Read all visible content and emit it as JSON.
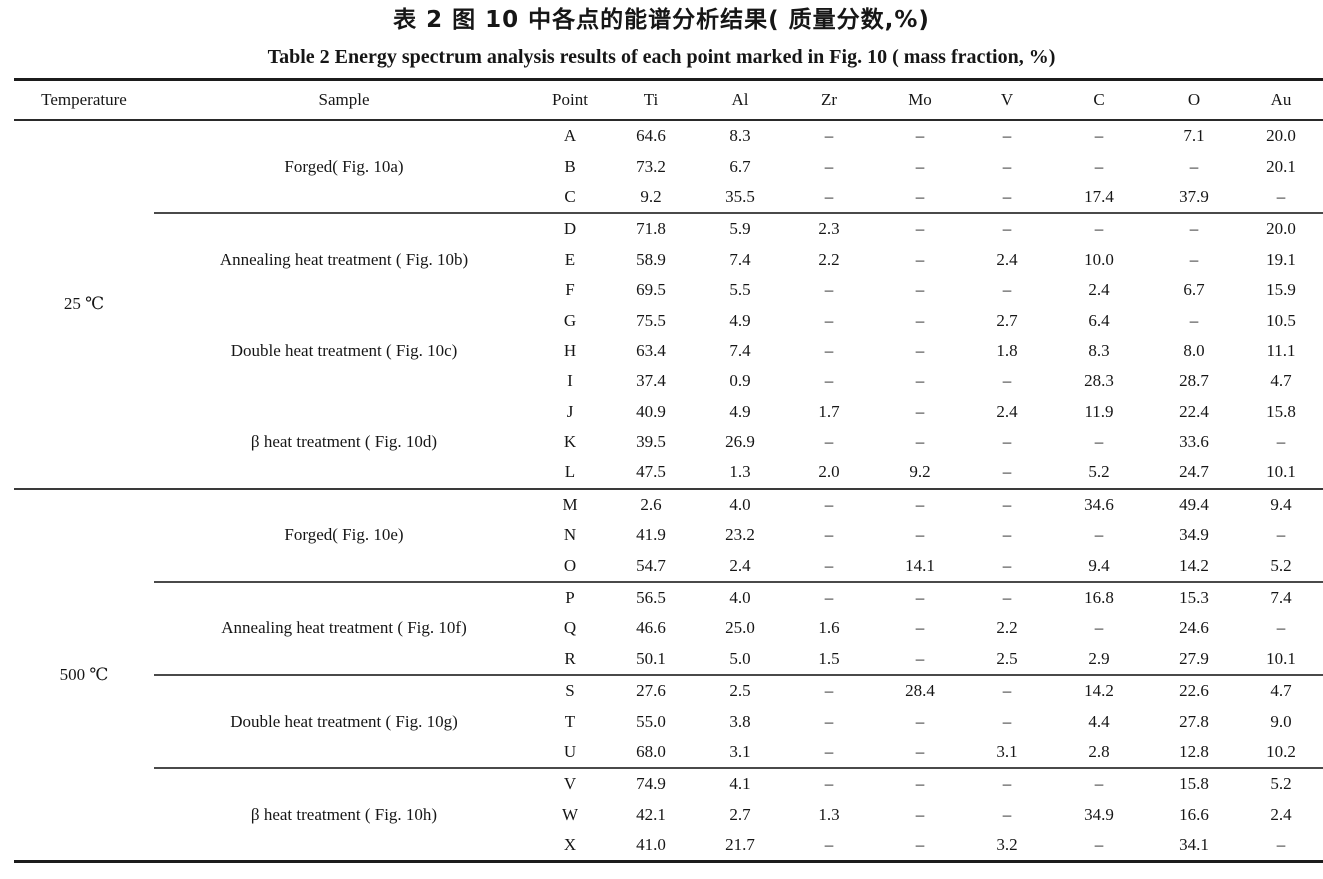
{
  "title_zh": "表 2  图 10 中各点的能谱分析结果( 质量分数,%)",
  "title_en": "Table 2  Energy spectrum analysis results of each point marked in Fig. 10 ( mass fraction, %)",
  "table": {
    "columns": [
      "Temperature",
      "Sample",
      "Point",
      "Ti",
      "Al",
      "Zr",
      "Mo",
      "V",
      "C",
      "O",
      "Au"
    ],
    "missing_symbol": "–",
    "sections": [
      {
        "temperature": "25 ℃",
        "groups": [
          {
            "sample": "Forged( Fig. 10a)",
            "separator_after": true,
            "rows": [
              {
                "point": "A",
                "values": [
                  "64.6",
                  "8.3",
                  "–",
                  "–",
                  "–",
                  "–",
                  "7.1",
                  "20.0"
                ]
              },
              {
                "point": "B",
                "values": [
                  "73.2",
                  "6.7",
                  "–",
                  "–",
                  "–",
                  "–",
                  "–",
                  "20.1"
                ]
              },
              {
                "point": "C",
                "values": [
                  "9.2",
                  "35.5",
                  "–",
                  "–",
                  "–",
                  "17.4",
                  "37.9",
                  "–"
                ]
              }
            ]
          },
          {
            "sample": "Annealing heat treatment ( Fig. 10b)",
            "separator_after": false,
            "rows": [
              {
                "point": "D",
                "values": [
                  "71.8",
                  "5.9",
                  "2.3",
                  "–",
                  "–",
                  "–",
                  "–",
                  "20.0"
                ]
              },
              {
                "point": "E",
                "values": [
                  "58.9",
                  "7.4",
                  "2.2",
                  "–",
                  "2.4",
                  "10.0",
                  "–",
                  "19.1"
                ]
              },
              {
                "point": "F",
                "values": [
                  "69.5",
                  "5.5",
                  "–",
                  "–",
                  "–",
                  "2.4",
                  "6.7",
                  "15.9"
                ]
              }
            ]
          },
          {
            "sample": "Double heat treatment ( Fig. 10c)",
            "separator_after": false,
            "rows": [
              {
                "point": "G",
                "values": [
                  "75.5",
                  "4.9",
                  "–",
                  "–",
                  "2.7",
                  "6.4",
                  "–",
                  "10.5"
                ]
              },
              {
                "point": "H",
                "values": [
                  "63.4",
                  "7.4",
                  "–",
                  "–",
                  "1.8",
                  "8.3",
                  "8.0",
                  "11.1"
                ]
              },
              {
                "point": "I",
                "values": [
                  "37.4",
                  "0.9",
                  "–",
                  "–",
                  "–",
                  "28.3",
                  "28.7",
                  "4.7"
                ]
              }
            ]
          },
          {
            "sample": "β heat treatment ( Fig. 10d)",
            "separator_after": false,
            "rows": [
              {
                "point": "J",
                "values": [
                  "40.9",
                  "4.9",
                  "1.7",
                  "–",
                  "2.4",
                  "11.9",
                  "22.4",
                  "15.8"
                ]
              },
              {
                "point": "K",
                "values": [
                  "39.5",
                  "26.9",
                  "–",
                  "–",
                  "–",
                  "–",
                  "33.6",
                  "–"
                ]
              },
              {
                "point": "L",
                "values": [
                  "47.5",
                  "1.3",
                  "2.0",
                  "9.2",
                  "–",
                  "5.2",
                  "24.7",
                  "10.1"
                ]
              }
            ]
          }
        ]
      },
      {
        "temperature": "500 ℃",
        "groups": [
          {
            "sample": "Forged( Fig. 10e)",
            "separator_after": true,
            "rows": [
              {
                "point": "M",
                "values": [
                  "2.6",
                  "4.0",
                  "–",
                  "–",
                  "–",
                  "34.6",
                  "49.4",
                  "9.4"
                ]
              },
              {
                "point": "N",
                "values": [
                  "41.9",
                  "23.2",
                  "–",
                  "–",
                  "–",
                  "–",
                  "34.9",
                  "–"
                ]
              },
              {
                "point": "O",
                "values": [
                  "54.7",
                  "2.4",
                  "–",
                  "14.1",
                  "–",
                  "9.4",
                  "14.2",
                  "5.2"
                ]
              }
            ]
          },
          {
            "sample": "Annealing heat treatment ( Fig. 10f)",
            "separator_after": true,
            "rows": [
              {
                "point": "P",
                "values": [
                  "56.5",
                  "4.0",
                  "–",
                  "–",
                  "–",
                  "16.8",
                  "15.3",
                  "7.4"
                ]
              },
              {
                "point": "Q",
                "values": [
                  "46.6",
                  "25.0",
                  "1.6",
                  "–",
                  "2.2",
                  "–",
                  "24.6",
                  "–"
                ]
              },
              {
                "point": "R",
                "values": [
                  "50.1",
                  "5.0",
                  "1.5",
                  "–",
                  "2.5",
                  "2.9",
                  "27.9",
                  "10.1"
                ]
              }
            ]
          },
          {
            "sample": "Double heat treatment ( Fig. 10g)",
            "separator_after": true,
            "rows": [
              {
                "point": "S",
                "values": [
                  "27.6",
                  "2.5",
                  "–",
                  "28.4",
                  "–",
                  "14.2",
                  "22.6",
                  "4.7"
                ]
              },
              {
                "point": "T",
                "values": [
                  "55.0",
                  "3.8",
                  "–",
                  "–",
                  "–",
                  "4.4",
                  "27.8",
                  "9.0"
                ]
              },
              {
                "point": "U",
                "values": [
                  "68.0",
                  "3.1",
                  "–",
                  "–",
                  "3.1",
                  "2.8",
                  "12.8",
                  "10.2"
                ]
              }
            ]
          },
          {
            "sample": "β heat treatment ( Fig. 10h)",
            "separator_after": false,
            "rows": [
              {
                "point": "V",
                "values": [
                  "74.9",
                  "4.1",
                  "–",
                  "–",
                  "–",
                  "–",
                  "15.8",
                  "5.2"
                ]
              },
              {
                "point": "W",
                "values": [
                  "42.1",
                  "2.7",
                  "1.3",
                  "–",
                  "–",
                  "34.9",
                  "16.6",
                  "2.4"
                ]
              },
              {
                "point": "X",
                "values": [
                  "41.0",
                  "21.7",
                  "–",
                  "–",
                  "3.2",
                  "–",
                  "34.1",
                  "–"
                ]
              }
            ]
          }
        ]
      }
    ]
  }
}
